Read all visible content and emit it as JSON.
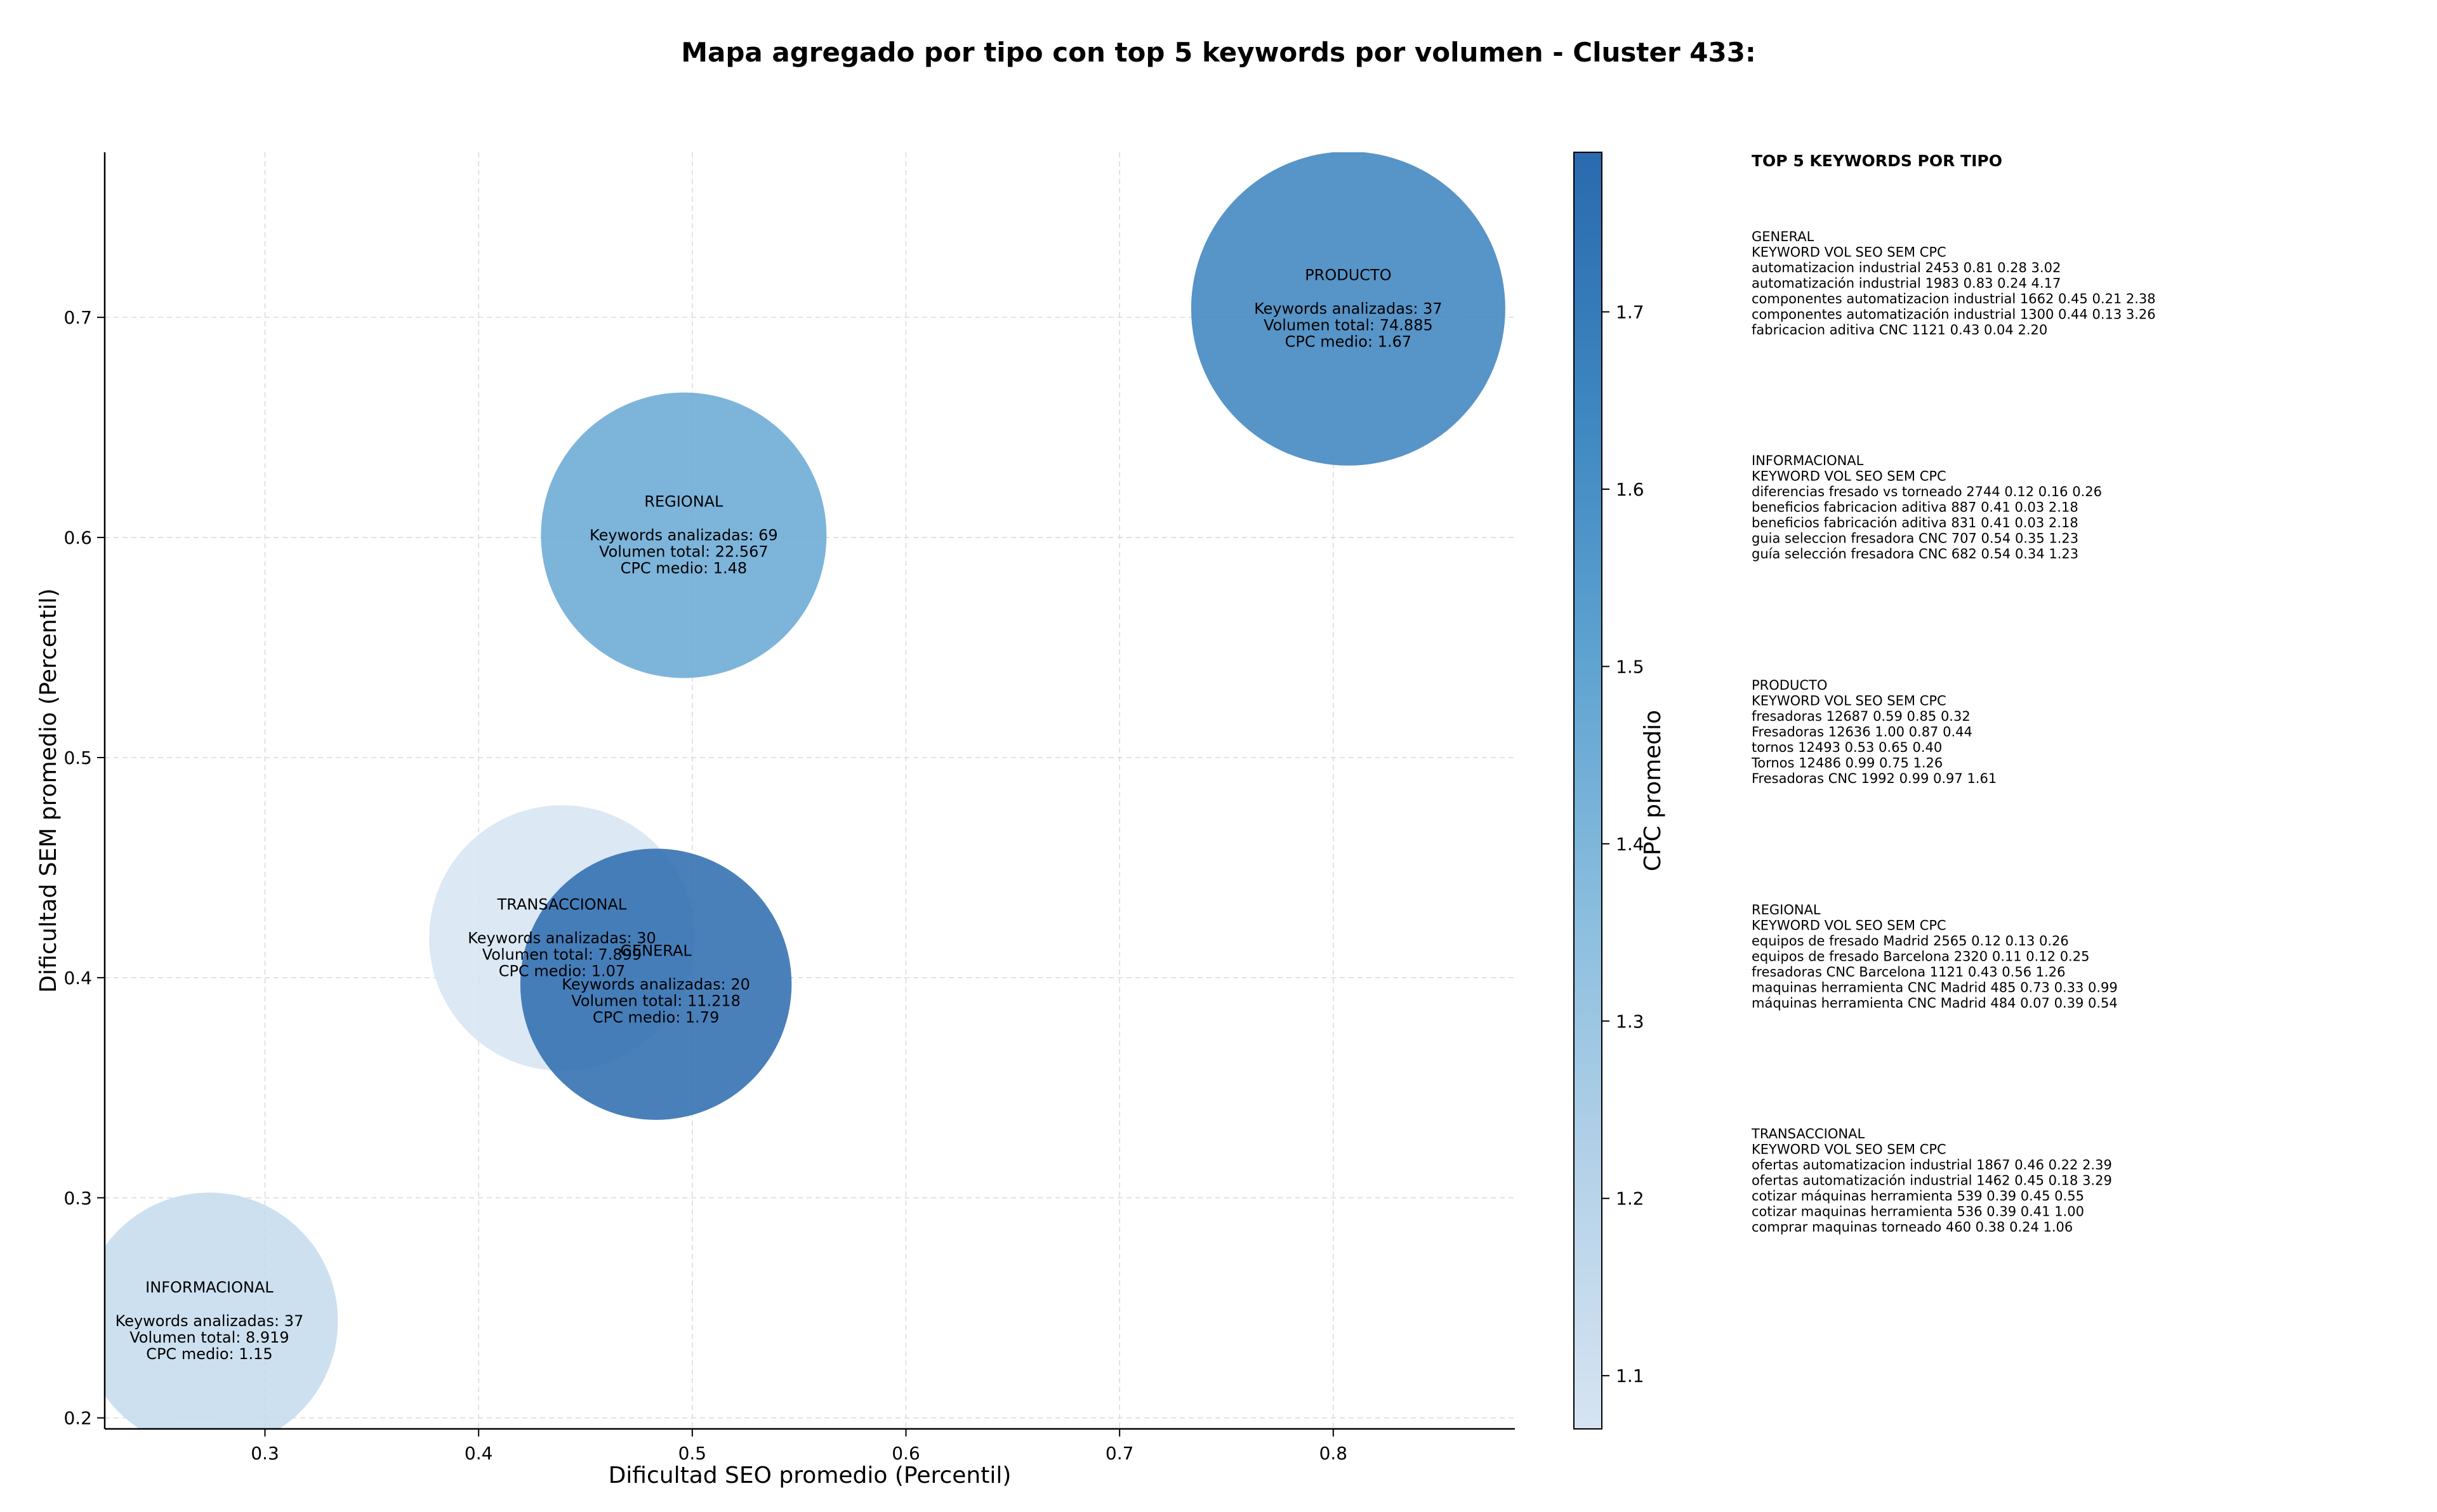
{
  "chart_data": {
    "type": "scatter",
    "title": "Mapa agregado por tipo con top 5 keywords por volumen - Cluster 433:",
    "xlabel": "Dificultad SEO promedio (Percentil)",
    "ylabel": "Dificultad SEM promedio (Percentil)",
    "colorbar_label": "CPC promedio",
    "xlim": [
      0.225,
      0.885
    ],
    "ylim": [
      0.195,
      0.775
    ],
    "xticks": [
      "0.3",
      "0.4",
      "0.5",
      "0.6",
      "0.7",
      "0.8"
    ],
    "yticks": [
      "0.2",
      "0.3",
      "0.4",
      "0.5",
      "0.6",
      "0.7"
    ],
    "cbar_range": [
      1.07,
      1.79
    ],
    "cbar_ticks": [
      "1.1",
      "1.2",
      "1.3",
      "1.4",
      "1.5",
      "1.6",
      "1.7"
    ],
    "grid": true,
    "colormap": [
      "#d6e4f2",
      "#b5d2e9",
      "#8bbede",
      "#5fa3d1",
      "#3d86c0",
      "#2a6aae"
    ],
    "label_line_kw": "Keywords analizadas: ",
    "label_line_vol": "Volumen total: ",
    "label_line_cpc": "CPC medio: ",
    "bubbles": [
      {
        "name": "INFORMACIONAL",
        "x": 0.274,
        "y": 0.244,
        "count": 37,
        "volume": "8.919",
        "cpc": 1.15,
        "size": 0.9
      },
      {
        "name": "TRANSACCIONAL",
        "x": 0.439,
        "y": 0.418,
        "count": 30,
        "volume": "7.899",
        "cpc": 1.07,
        "size": 0.93
      },
      {
        "name": "GENERAL",
        "x": 0.483,
        "y": 0.397,
        "count": 20,
        "volume": "11.218",
        "cpc": 1.79,
        "size": 0.95
      },
      {
        "name": "REGIONAL",
        "x": 0.496,
        "y": 0.601,
        "count": 69,
        "volume": "22.567",
        "cpc": 1.48,
        "size": 1.0
      },
      {
        "name": "PRODUCTO",
        "x": 0.807,
        "y": 0.704,
        "count": 37,
        "volume": "74.885",
        "cpc": 1.67,
        "size": 1.1
      }
    ],
    "top5": {
      "heading": "TOP 5 KEYWORDS POR TIPO",
      "columns": [
        "KEYWORD",
        "VOL",
        "SEO",
        "SEM",
        "CPC"
      ],
      "groups": [
        {
          "name": "GENERAL",
          "rows": [
            [
              "automatizacion industrial",
              "2453",
              "0.81",
              "0.28",
              "3.02"
            ],
            [
              "automatización industrial",
              "1983",
              "0.83",
              "0.24",
              "4.17"
            ],
            [
              "componentes automatizacion industrial",
              "1662",
              "0.45",
              "0.21",
              "2.38"
            ],
            [
              "componentes automatización industrial",
              "1300",
              "0.44",
              "0.13",
              "3.26"
            ],
            [
              "fabricacion aditiva CNC",
              "1121",
              "0.43",
              "0.04",
              "2.20"
            ]
          ]
        },
        {
          "name": "INFORMACIONAL",
          "rows": [
            [
              "diferencias fresado vs torneado",
              "2744",
              "0.12",
              "0.16",
              "0.26"
            ],
            [
              "beneficios fabricacion aditiva",
              "887",
              "0.41",
              "0.03",
              "2.18"
            ],
            [
              "beneficios fabricación aditiva",
              "831",
              "0.41",
              "0.03",
              "2.18"
            ],
            [
              "guia seleccion fresadora CNC",
              "707",
              "0.54",
              "0.35",
              "1.23"
            ],
            [
              "guía selección fresadora CNC",
              "682",
              "0.54",
              "0.34",
              "1.23"
            ]
          ]
        },
        {
          "name": "PRODUCTO",
          "rows": [
            [
              "fresadoras",
              "12687",
              "0.59",
              "0.85",
              "0.32"
            ],
            [
              "Fresadoras",
              "12636",
              "1.00",
              "0.87",
              "0.44"
            ],
            [
              "tornos",
              "12493",
              "0.53",
              "0.65",
              "0.40"
            ],
            [
              "Tornos",
              "12486",
              "0.99",
              "0.75",
              "1.26"
            ],
            [
              "Fresadoras CNC",
              "1992",
              "0.99",
              "0.97",
              "1.61"
            ]
          ]
        },
        {
          "name": "REGIONAL",
          "rows": [
            [
              "equipos de fresado Madrid",
              "2565",
              "0.12",
              "0.13",
              "0.26"
            ],
            [
              "equipos de fresado Barcelona",
              "2320",
              "0.11",
              "0.12",
              "0.25"
            ],
            [
              "fresadoras CNC Barcelona",
              "1121",
              "0.43",
              "0.56",
              "1.26"
            ],
            [
              "maquinas herramienta CNC Madrid",
              "485",
              "0.73",
              "0.33",
              "0.99"
            ],
            [
              "máquinas herramienta CNC Madrid",
              "484",
              "0.07",
              "0.39",
              "0.54"
            ]
          ]
        },
        {
          "name": "TRANSACCIONAL",
          "rows": [
            [
              "ofertas automatizacion industrial",
              "1867",
              "0.46",
              "0.22",
              "2.39"
            ],
            [
              "ofertas automatización industrial",
              "1462",
              "0.45",
              "0.18",
              "3.29"
            ],
            [
              "cotizar máquinas herramienta",
              "539",
              "0.39",
              "0.45",
              "0.55"
            ],
            [
              "cotizar maquinas herramienta",
              "536",
              "0.39",
              "0.41",
              "1.00"
            ],
            [
              "comprar maquinas torneado",
              "460",
              "0.38",
              "0.24",
              "1.06"
            ]
          ]
        }
      ]
    }
  }
}
